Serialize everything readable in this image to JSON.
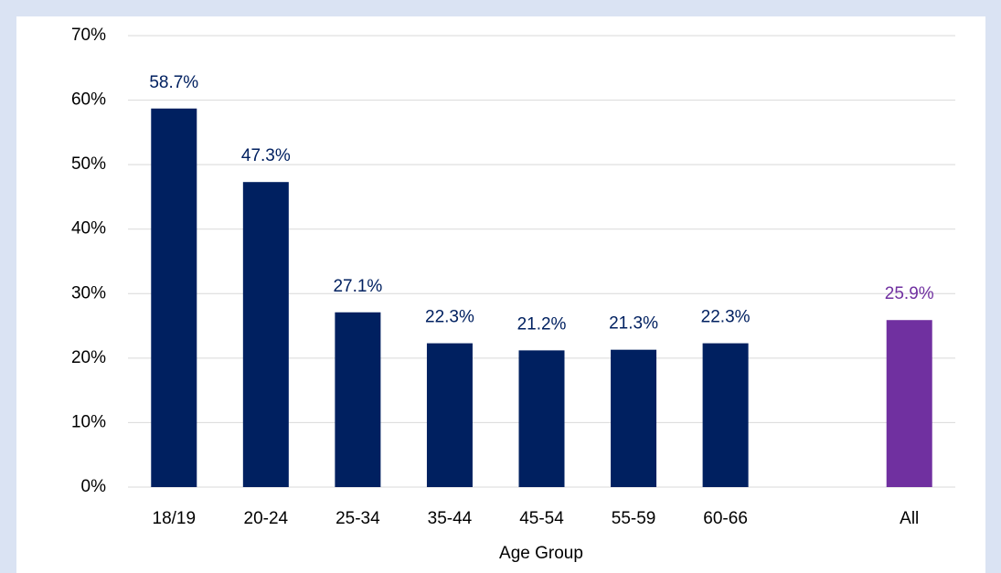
{
  "chart_data": {
    "type": "bar",
    "x_label": "Age Group",
    "categories": [
      "18/19",
      "20-24",
      "25-34",
      "35-44",
      "45-54",
      "55-59",
      "60-66",
      null,
      "All"
    ],
    "values": [
      58.7,
      47.3,
      27.1,
      22.3,
      21.2,
      21.3,
      22.3,
      null,
      25.9
    ],
    "value_labels": [
      "58.7%",
      "47.3%",
      "27.1%",
      "22.3%",
      "21.2%",
      "21.3%",
      "22.3%",
      null,
      "25.9%"
    ],
    "colors": [
      "#002060",
      "#002060",
      "#002060",
      "#002060",
      "#002060",
      "#002060",
      "#002060",
      null,
      "#7030a0"
    ],
    "ylim": [
      0,
      70
    ],
    "yticks": [
      {
        "value": 0,
        "label": "0%"
      },
      {
        "value": 10,
        "label": "10%"
      },
      {
        "value": 20,
        "label": "20%"
      },
      {
        "value": 30,
        "label": "30%"
      },
      {
        "value": 40,
        "label": "40%"
      },
      {
        "value": 50,
        "label": "50%"
      },
      {
        "value": 60,
        "label": "60%"
      },
      {
        "value": 70,
        "label": "70%"
      }
    ],
    "grid": true
  }
}
